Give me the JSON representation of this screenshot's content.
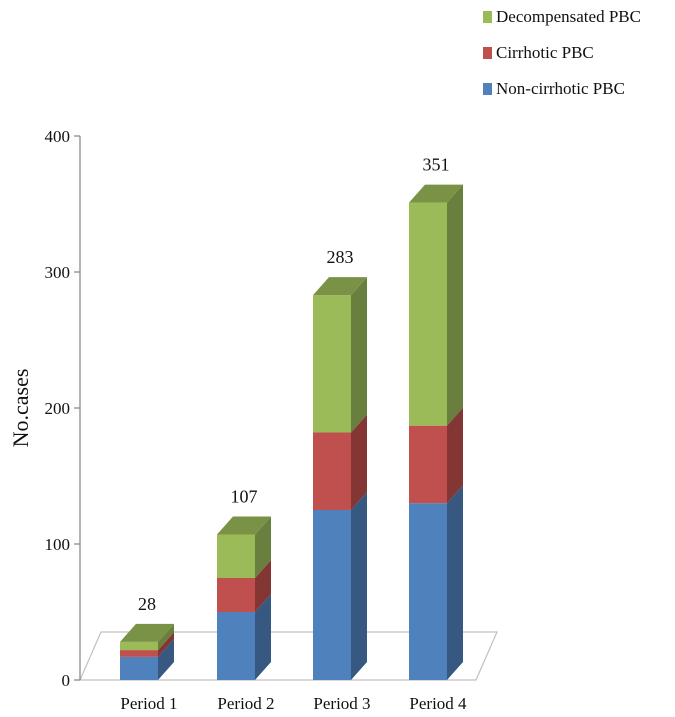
{
  "chart_data": {
    "type": "bar",
    "stacked": true,
    "three_d": true,
    "ylabel": "No.cases",
    "ylim": [
      0,
      400
    ],
    "yticks": [
      0,
      100,
      200,
      300,
      400
    ],
    "categories": [
      "Period 1",
      "Period 2",
      "Period 3",
      "Period 4"
    ],
    "series": [
      {
        "name": "Non-cirrhotic PBC",
        "color": "#4f81bd",
        "values": [
          17,
          50,
          125,
          130
        ]
      },
      {
        "name": "Cirrhotic PBC",
        "color": "#c0504d",
        "values": [
          5,
          25,
          57,
          57
        ]
      },
      {
        "name": "Decompensated PBC",
        "color": "#9bbb59",
        "values": [
          6,
          32,
          101,
          164
        ]
      }
    ],
    "totals": [
      28,
      107,
      283,
      351
    ],
    "legend_position": "top-right"
  }
}
